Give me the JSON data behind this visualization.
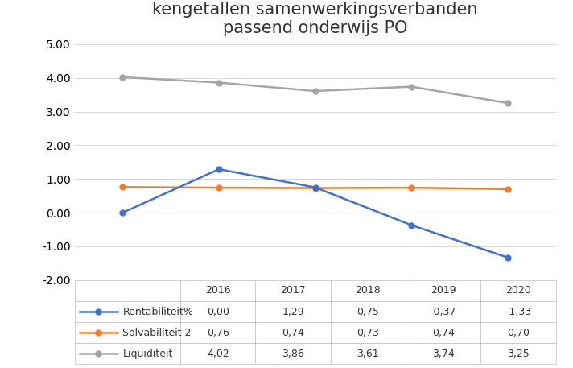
{
  "title_line1": "kengetallen samenwerkingsverbanden",
  "title_line2": "passend onderwijs PO",
  "years": [
    2016,
    2017,
    2018,
    2019,
    2020
  ],
  "rentabiliteit": [
    0.0,
    1.29,
    0.75,
    -0.37,
    -1.33
  ],
  "solvabiliteit": [
    0.76,
    0.74,
    0.73,
    0.74,
    0.7
  ],
  "liquiditeit": [
    4.02,
    3.86,
    3.61,
    3.74,
    3.25
  ],
  "color_rentabiliteit": "#4472C4",
  "color_solvabiliteit": "#ED7D31",
  "color_liquiditeit": "#A5A5A5",
  "ylim_min": -2.0,
  "ylim_max": 5.0,
  "yticks": [
    -2.0,
    -1.0,
    0.0,
    1.0,
    2.0,
    3.0,
    4.0,
    5.0
  ],
  "table_row_labels": [
    "—●— Rentabiliteit%",
    "—●— Solvabiliteit 2",
    "—●— Liquiditeit"
  ],
  "table_row_labels_plain": [
    "Rentabiliteit%",
    "Solvabiliteit 2",
    "Liquiditeit"
  ],
  "table_col_labels": [
    "2016",
    "2017",
    "2018",
    "2019",
    "2020"
  ],
  "table_values": [
    [
      "0,00",
      "1,29",
      "0,75",
      "-0,37",
      "-1,33"
    ],
    [
      "0,76",
      "0,74",
      "0,73",
      "0,74",
      "0,70"
    ],
    [
      "4,02",
      "3,86",
      "3,61",
      "3,74",
      "3,25"
    ]
  ],
  "background_color": "#FFFFFF",
  "grid_color": "#D9D9D9",
  "title_fontsize": 15,
  "axis_fontsize": 10,
  "table_fontsize": 9,
  "row_colors": [
    "#4472C4",
    "#ED7D31",
    "#A5A5A5"
  ]
}
